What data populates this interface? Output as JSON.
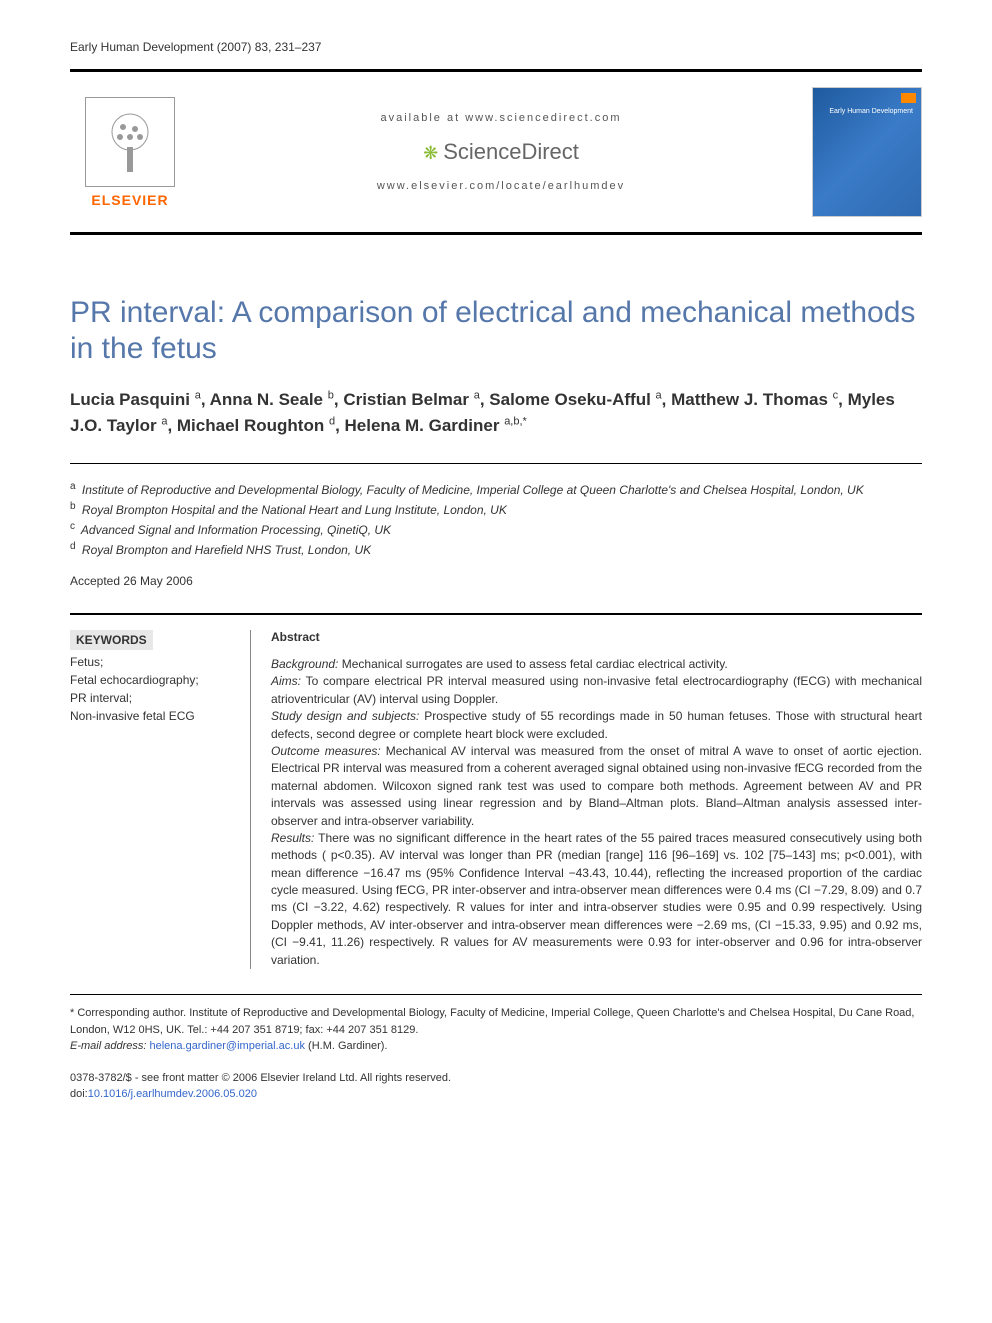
{
  "journal_header": "Early Human Development (2007) 83, 231–237",
  "header": {
    "available_at": "available at www.sciencedirect.com",
    "brand": "ScienceDirect",
    "journal_url": "www.elsevier.com/locate/earlhumdev",
    "publisher_label": "ELSEVIER",
    "cover_label": "Early Human Development"
  },
  "title": "PR interval: A comparison of electrical and mechanical methods in the fetus",
  "authors_html": "Lucia Pasquini <sup>a</sup>, Anna N. Seale <sup>b</sup>, Cristian Belmar <sup>a</sup>, Salome Oseku-Afful <sup>a</sup>, Matthew J. Thomas <sup>c</sup>, Myles J.O. Taylor <sup>a</sup>, Michael Roughton <sup>d</sup>, Helena M. Gardiner <sup>a,b,*</sup>",
  "affiliations": [
    {
      "sup": "a",
      "text": "Institute of Reproductive and Developmental Biology, Faculty of Medicine, Imperial College at Queen Charlotte's and Chelsea Hospital, London, UK"
    },
    {
      "sup": "b",
      "text": "Royal Brompton Hospital and the National Heart and Lung Institute, London, UK"
    },
    {
      "sup": "c",
      "text": "Advanced Signal and Information Processing, QinetiQ, UK"
    },
    {
      "sup": "d",
      "text": "Royal Brompton and Harefield NHS Trust, London, UK"
    }
  ],
  "accepted": "Accepted 26 May 2006",
  "keywords_heading": "KEYWORDS",
  "keywords": "Fetus;\nFetal echocardiography;\nPR interval;\nNon-invasive fetal ECG",
  "abstract_heading": "Abstract",
  "abstract": {
    "background_label": "Background:",
    "background": "Mechanical surrogates are used to assess fetal cardiac electrical activity.",
    "aims_label": "Aims:",
    "aims": "To compare electrical PR interval measured using non-invasive fetal electrocardiography (fECG) with mechanical atrioventricular (AV) interval using Doppler.",
    "design_label": "Study design and subjects:",
    "design": "Prospective study of 55 recordings made in 50 human fetuses. Those with structural heart defects, second degree or complete heart block were excluded.",
    "outcome_label": "Outcome measures:",
    "outcome": "Mechanical AV interval was measured from the onset of mitral A wave to onset of aortic ejection. Electrical PR interval was measured from a coherent averaged signal obtained using non-invasive fECG recorded from the maternal abdomen. Wilcoxon signed rank test was used to compare both methods. Agreement between AV and PR intervals was assessed using linear regression and by Bland–Altman plots. Bland–Altman analysis assessed inter-observer and intra-observer variability.",
    "results_label": "Results:",
    "results": "There was no significant difference in the heart rates of the 55 paired traces measured consecutively using both methods ( p<0.35). AV interval was longer than PR (median [range] 116 [96–169] vs. 102 [75–143] ms; p<0.001), with mean difference −16.47 ms (95% Confidence Interval −43.43, 10.44), reflecting the increased proportion of the cardiac cycle measured. Using fECG, PR inter-observer and intra-observer mean differences were 0.4 ms (CI −7.29, 8.09) and 0.7 ms (CI −3.22, 4.62) respectively. R values for inter and intra-observer studies were 0.95 and 0.99 respectively. Using Doppler methods, AV inter-observer and intra-observer mean differences were −2.69 ms, (CI −15.33, 9.95) and 0.92 ms, (CI −9.41, 11.26) respectively. R values for AV measurements were 0.93 for inter-observer and 0.96 for intra-observer variation."
  },
  "footnotes": {
    "corresponding": "* Corresponding author. Institute of Reproductive and Developmental Biology, Faculty of Medicine, Imperial College, Queen Charlotte's and Chelsea Hospital, Du Cane Road, London, W12 0HS, UK. Tel.: +44 207 351 8719; fax: +44 207 351 8129.",
    "email_label": "E-mail address:",
    "email": "helena.gardiner@imperial.ac.uk",
    "email_suffix": "(H.M. Gardiner)."
  },
  "copyright": {
    "line1": "0378-3782/$ - see front matter © 2006 Elsevier Ireland Ltd. All rights reserved.",
    "doi_label": "doi:",
    "doi": "10.1016/j.earlhumdev.2006.05.020"
  },
  "colors": {
    "title_color": "#5577aa",
    "publisher_orange": "#ff6600",
    "link_blue": "#3366cc",
    "text": "#333333",
    "rule": "#000000",
    "sd_green": "#88bb33",
    "cover_bg": "#2e6ab0"
  }
}
